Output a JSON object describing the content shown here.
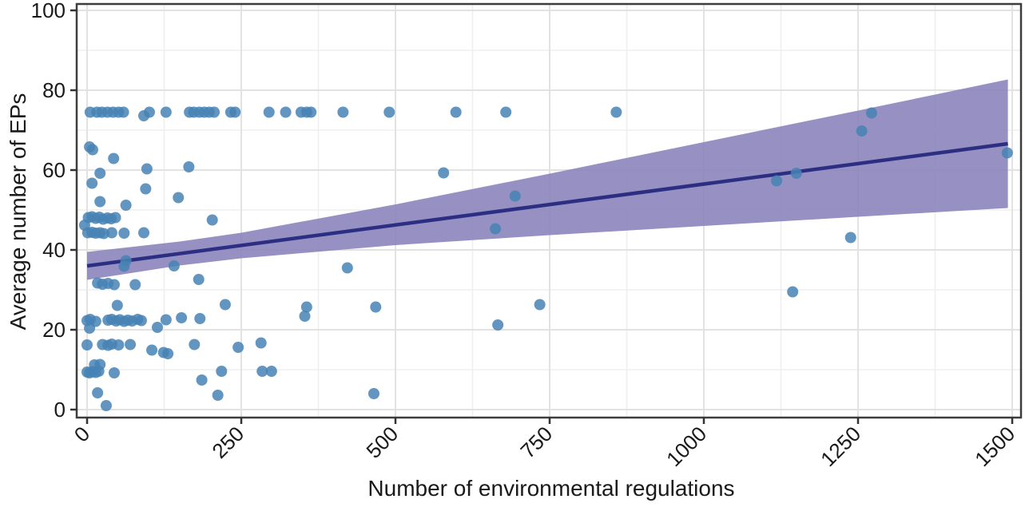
{
  "chart_data": {
    "type": "scatter",
    "title": "",
    "xlabel": "Number of environmental regulations",
    "ylabel": "Average number of EPs",
    "xlim": [
      0,
      1500
    ],
    "ylim": [
      0,
      100
    ],
    "x_ticks": [
      0,
      250,
      500,
      750,
      1000,
      1250,
      1500
    ],
    "x_minor_gridlines": [
      125,
      375,
      625,
      875,
      1125,
      1375
    ],
    "y_ticks": [
      0,
      20,
      40,
      60,
      80,
      100
    ],
    "y_minor_gridlines": [
      10,
      30,
      50,
      70,
      90
    ],
    "x_tick_label_rotation_deg": 45,
    "grid": "major+minor",
    "legend": "none",
    "points": [
      [
        5,
        74.5
      ],
      [
        16,
        74.5
      ],
      [
        24,
        74.5
      ],
      [
        33,
        74.5
      ],
      [
        42,
        74.5
      ],
      [
        51,
        74.5
      ],
      [
        59,
        74.5
      ],
      [
        92,
        73.6
      ],
      [
        101,
        74.5
      ],
      [
        128,
        74.5
      ],
      [
        166,
        74.5
      ],
      [
        173,
        74.5
      ],
      [
        182,
        74.5
      ],
      [
        190,
        74.5
      ],
      [
        198,
        74.5
      ],
      [
        206,
        74.5
      ],
      [
        233,
        74.5
      ],
      [
        240,
        74.5
      ],
      [
        295,
        74.5
      ],
      [
        322,
        74.5
      ],
      [
        347,
        74.5
      ],
      [
        356,
        74.5
      ],
      [
        363,
        74.5
      ],
      [
        415,
        74.5
      ],
      [
        490,
        74.5
      ],
      [
        598,
        74.5
      ],
      [
        679,
        74.5
      ],
      [
        858,
        74.5
      ],
      [
        1272,
        74.3
      ],
      [
        4,
        65.8
      ],
      [
        9,
        65.1
      ],
      [
        43,
        62.9
      ],
      [
        21,
        59.2
      ],
      [
        97,
        60.3
      ],
      [
        165,
        60.8
      ],
      [
        8,
        56.7
      ],
      [
        95,
        55.3
      ],
      [
        148,
        53.1
      ],
      [
        21,
        52.1
      ],
      [
        63,
        51.2
      ],
      [
        203,
        47.5
      ],
      [
        2,
        48.1
      ],
      [
        8,
        48.3
      ],
      [
        14,
        47.9
      ],
      [
        20,
        48.2
      ],
      [
        26,
        47.7
      ],
      [
        33,
        48.0
      ],
      [
        39,
        47.8
      ],
      [
        46,
        48.1
      ],
      [
        -4,
        46.2
      ],
      [
        1,
        44.3
      ],
      [
        8,
        44.4
      ],
      [
        14,
        44.2
      ],
      [
        21,
        44.3
      ],
      [
        27,
        44.1
      ],
      [
        40,
        44.3
      ],
      [
        60,
        44.2
      ],
      [
        92,
        44.3
      ],
      [
        60,
        35.9
      ],
      [
        63,
        37.3
      ],
      [
        141,
        36.0
      ],
      [
        422,
        35.5
      ],
      [
        17,
        31.7
      ],
      [
        25,
        31.4
      ],
      [
        34,
        31.6
      ],
      [
        44,
        31.3
      ],
      [
        78,
        31.3
      ],
      [
        181,
        32.6
      ],
      [
        49,
        26.1
      ],
      [
        224,
        26.3
      ],
      [
        356,
        25.7
      ],
      [
        353,
        23.4
      ],
      [
        468,
        25.7
      ],
      [
        734,
        26.3
      ],
      [
        0,
        22.3
      ],
      [
        5,
        22.6
      ],
      [
        14,
        22.1
      ],
      [
        34,
        22.4
      ],
      [
        40,
        22.6
      ],
      [
        47,
        22.2
      ],
      [
        53,
        22.5
      ],
      [
        60,
        22.1
      ],
      [
        66,
        22.4
      ],
      [
        73,
        22.2
      ],
      [
        82,
        22.6
      ],
      [
        88,
        22.3
      ],
      [
        114,
        20.6
      ],
      [
        128,
        22.5
      ],
      [
        153,
        23.0
      ],
      [
        183,
        22.8
      ],
      [
        4,
        20.4
      ],
      [
        666,
        21.2
      ],
      [
        0,
        16.2
      ],
      [
        25,
        16.3
      ],
      [
        34,
        16.1
      ],
      [
        40,
        16.4
      ],
      [
        51,
        16.2
      ],
      [
        70,
        16.3
      ],
      [
        105,
        14.9
      ],
      [
        124,
        14.3
      ],
      [
        131,
        14.0
      ],
      [
        174,
        16.3
      ],
      [
        245,
        15.6
      ],
      [
        282,
        16.7
      ],
      [
        12,
        11.2
      ],
      [
        21,
        11.3
      ],
      [
        0,
        9.4
      ],
      [
        4,
        9.2
      ],
      [
        9,
        9.5
      ],
      [
        14,
        9.3
      ],
      [
        19,
        9.6
      ],
      [
        44,
        9.2
      ],
      [
        218,
        9.6
      ],
      [
        284,
        9.6
      ],
      [
        299,
        9.6
      ],
      [
        186,
        7.4
      ],
      [
        17,
        4.2
      ],
      [
        212,
        3.6
      ],
      [
        31,
        1.0
      ],
      [
        465,
        4.0
      ],
      [
        578,
        59.3
      ],
      [
        694,
        53.5
      ],
      [
        662,
        45.3
      ],
      [
        1118,
        57.3
      ],
      [
        1150,
        59.2
      ],
      [
        1144,
        29.5
      ],
      [
        1238,
        43.1
      ],
      [
        1256,
        69.8
      ],
      [
        1492,
        64.3
      ]
    ],
    "trend_line": {
      "x": [
        0,
        1493
      ],
      "y": [
        36.0,
        66.6
      ]
    },
    "confidence_band": {
      "x": [
        0,
        150,
        250,
        500,
        750,
        1000,
        1250,
        1493
      ],
      "upper": [
        39.5,
        42.1,
        44.3,
        51.4,
        59.1,
        67.0,
        74.9,
        82.7
      ],
      "lower": [
        32.5,
        36.1,
        37.9,
        41.2,
        43.7,
        46.0,
        48.3,
        50.5
      ]
    },
    "colors": {
      "point_fill": "#4682b4",
      "point_opacity": 0.85,
      "trend_line": "#2b2e83",
      "confidence_band_fill": "#8b85bb",
      "confidence_band_opacity": 0.9,
      "grid_major": "#e2e2e2",
      "grid_minor": "#efefef",
      "panel_border": "#3d3d3d",
      "tick_mark": "#333333",
      "text": "#1a1a1a",
      "panel_background": "#ffffff"
    }
  }
}
